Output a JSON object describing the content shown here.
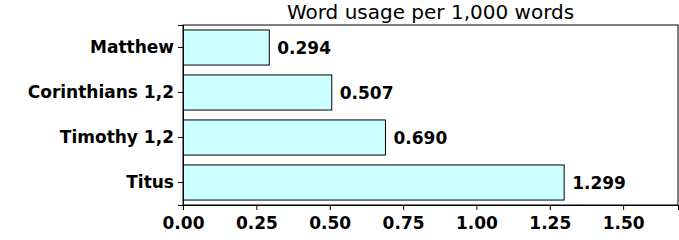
{
  "chart_data": {
    "type": "bar",
    "orientation": "horizontal",
    "title": "Word usage per 1,000 words",
    "categories": [
      "Matthew",
      "Corinthians 1,2",
      "Timothy 1,2",
      "Titus"
    ],
    "values": [
      0.294,
      0.507,
      0.69,
      1.299
    ],
    "value_labels": [
      "0.294",
      "0.507",
      "0.690",
      "1.299"
    ],
    "data_labels": true,
    "color": "#ccffff",
    "xlim": [
      0,
      1.687
    ],
    "xticks": [
      {
        "value": 0,
        "label": "0.00"
      },
      {
        "value": 0.25,
        "label": "0.25"
      },
      {
        "value": 0.5,
        "label": "0.50"
      },
      {
        "value": 0.75,
        "label": "0.75"
      },
      {
        "value": 1,
        "label": "1.00"
      },
      {
        "value": 1.25,
        "label": "1.25"
      },
      {
        "value": 1.5,
        "label": "1.50"
      }
    ]
  }
}
